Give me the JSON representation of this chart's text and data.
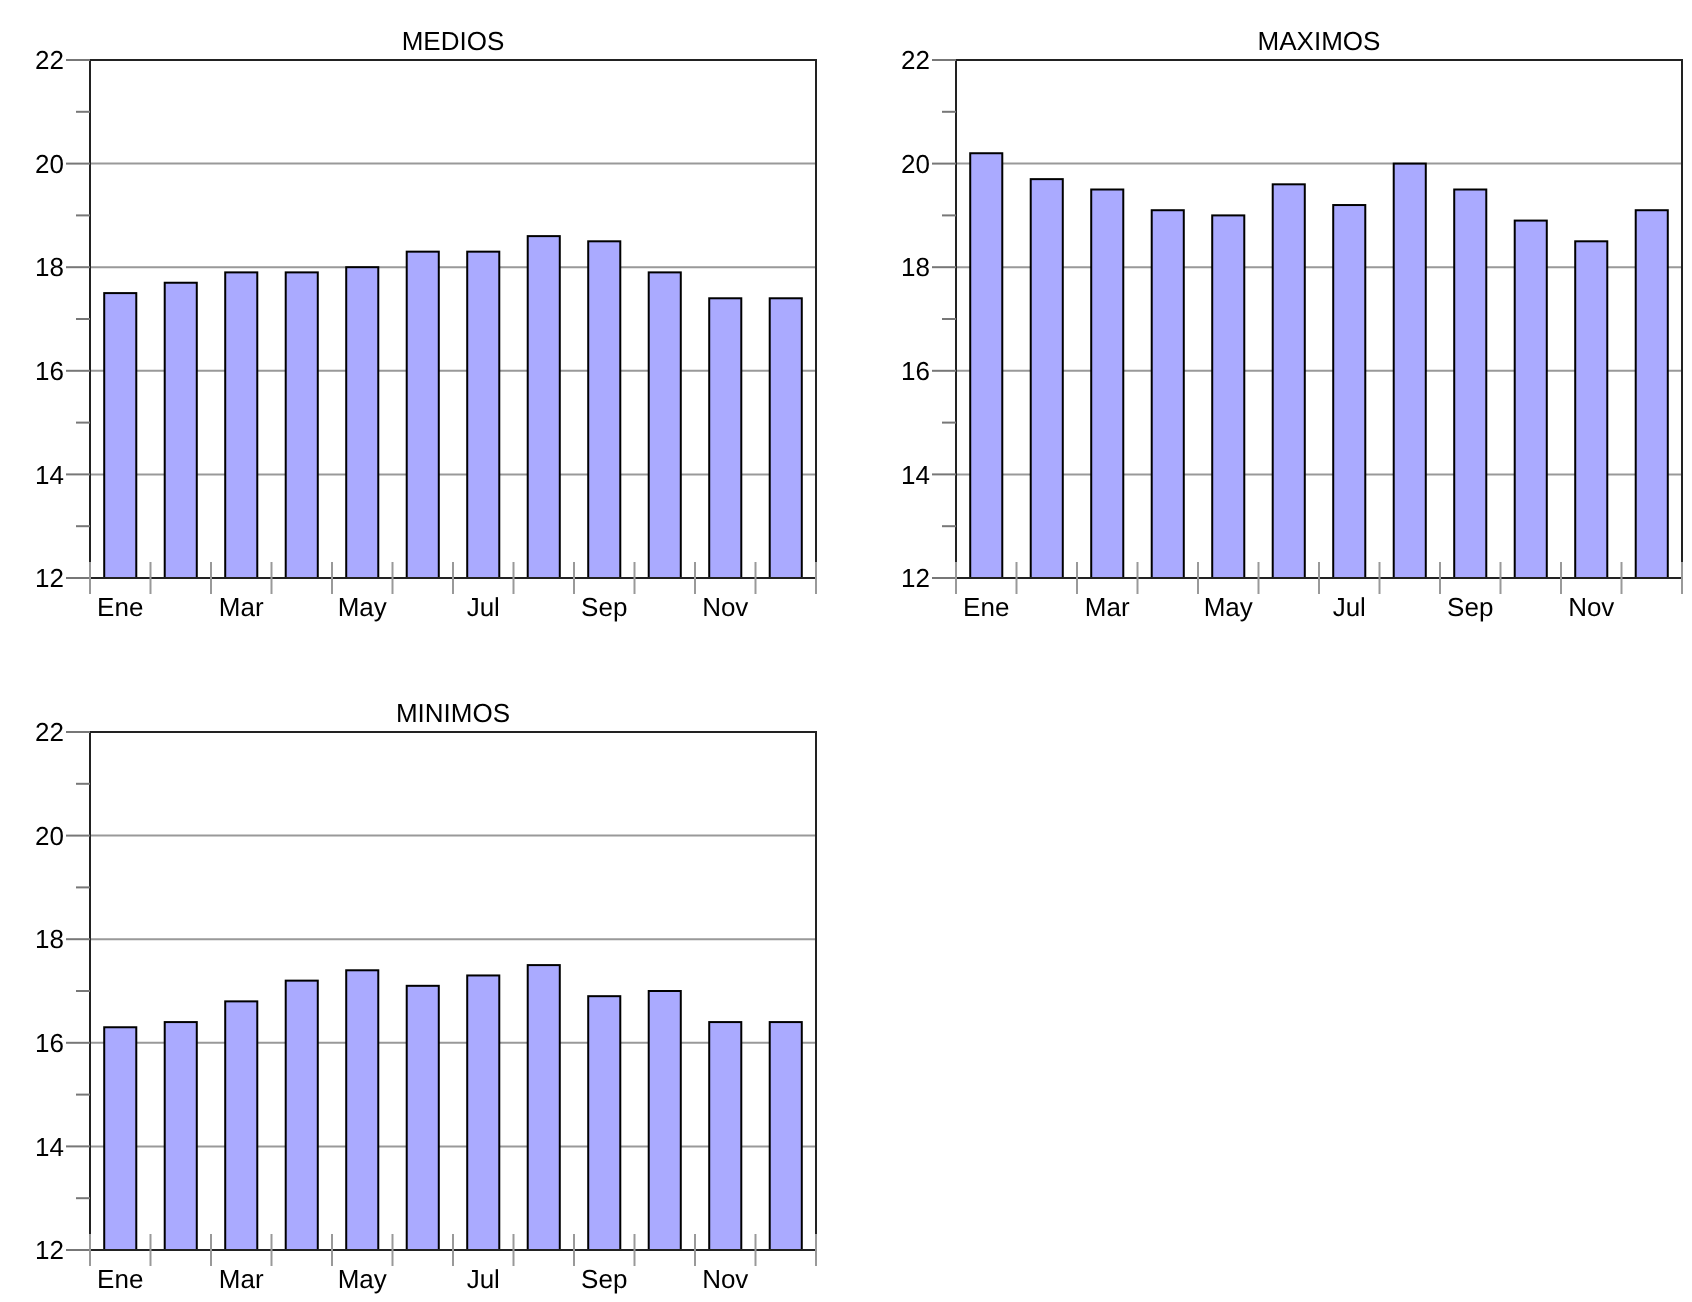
{
  "chart_data": [
    {
      "type": "bar",
      "title": "MEDIOS",
      "categories": [
        "Ene",
        null,
        "Mar",
        null,
        "May",
        null,
        "Jul",
        null,
        "Sep",
        null,
        "Nov",
        null
      ],
      "values": [
        17.5,
        17.7,
        17.9,
        17.9,
        18.0,
        18.3,
        18.3,
        18.6,
        18.5,
        17.9,
        17.4,
        17.4
      ],
      "color": "#aaaaff",
      "ylim": [
        12,
        22
      ],
      "yticks": [
        12,
        {
          "value": 13,
          "label": null
        },
        14,
        {
          "value": 15,
          "label": null
        },
        16,
        {
          "value": 17,
          "label": null
        },
        18,
        {
          "value": 19,
          "label": null
        },
        20,
        {
          "value": 21,
          "label": null
        },
        22
      ],
      "grid": "y"
    },
    {
      "type": "bar",
      "title": "MAXIMOS",
      "categories": [
        "Ene",
        null,
        "Mar",
        null,
        "May",
        null,
        "Jul",
        null,
        "Sep",
        null,
        "Nov",
        null
      ],
      "values": [
        20.2,
        19.7,
        19.5,
        19.1,
        19.0,
        19.6,
        19.2,
        20.0,
        19.5,
        18.9,
        18.5,
        19.1
      ],
      "color": "#aaaaff",
      "ylim": [
        12,
        22
      ],
      "yticks": [
        12,
        {
          "value": 13,
          "label": null
        },
        14,
        {
          "value": 15,
          "label": null
        },
        16,
        {
          "value": 17,
          "label": null
        },
        18,
        {
          "value": 19,
          "label": null
        },
        20,
        {
          "value": 21,
          "label": null
        },
        22
      ],
      "grid": "y"
    },
    {
      "type": "bar",
      "title": "MINIMOS",
      "categories": [
        "Ene",
        null,
        "Mar",
        null,
        "May",
        null,
        "Jul",
        null,
        "Sep",
        null,
        "Nov",
        null
      ],
      "values": [
        16.3,
        16.4,
        16.8,
        17.2,
        17.4,
        17.1,
        17.3,
        17.5,
        16.9,
        17.0,
        16.4,
        16.4
      ],
      "color": "#aaaaff",
      "ylim": [
        12,
        22
      ],
      "yticks": [
        12,
        {
          "value": 13,
          "label": null
        },
        14,
        {
          "value": 15,
          "label": null
        },
        16,
        {
          "value": 17,
          "label": null
        },
        18,
        {
          "value": 19,
          "label": null
        },
        20,
        {
          "value": 21,
          "label": null
        },
        22
      ],
      "grid": "y"
    }
  ]
}
